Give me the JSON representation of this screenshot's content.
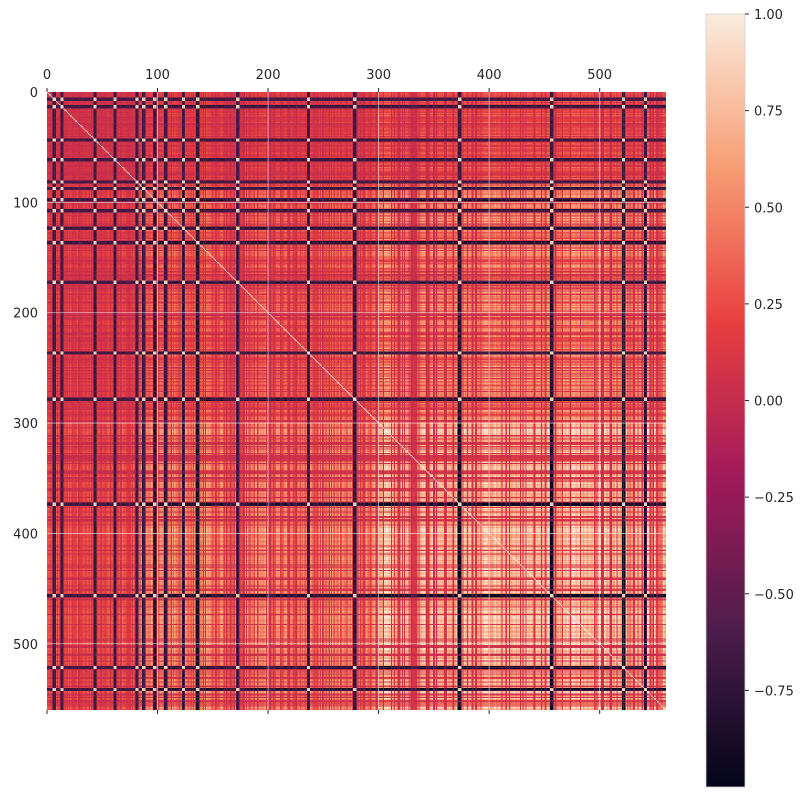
{
  "chart_data": {
    "type": "heatmap",
    "title": "",
    "xlabel": "",
    "ylabel": "",
    "matrix_size": 560,
    "xlim": [
      0,
      560
    ],
    "ylim": [
      560,
      0
    ],
    "x_ticks": [
      0,
      100,
      200,
      300,
      400,
      500
    ],
    "y_ticks": [
      0,
      100,
      200,
      300,
      400,
      500
    ],
    "x_tick_labels": [
      "0",
      "100",
      "200",
      "300",
      "400",
      "500"
    ],
    "y_tick_labels": [
      "0",
      "100",
      "200",
      "300",
      "400",
      "500"
    ],
    "x_axis_position": "top",
    "grid": true,
    "diagonal_value": 1.0,
    "colorbar": {
      "position": "right",
      "range": [
        -1.0,
        1.0
      ],
      "ticks": [
        1.0,
        0.75,
        0.5,
        0.25,
        0.0,
        -0.25,
        -0.5,
        -0.75
      ],
      "tick_labels": [
        "1.00",
        "0.75",
        "0.50",
        "0.25",
        "0.00",
        "−0.25",
        "−0.50",
        "−0.75"
      ]
    },
    "colormap": "rocket",
    "colormap_stops": [
      "#03051a",
      "#4c1d4b",
      "#a11a5b",
      "#e83f3f",
      "#f69c73",
      "#faebdd"
    ],
    "description_values": {
      "dominant_block_lower_right_range": [
        0.5,
        0.9
      ],
      "dark_band_rows": [
        5,
        12,
        42,
        60,
        80,
        86,
        96,
        106,
        122,
        135,
        171,
        235,
        277,
        372,
        455,
        520,
        540
      ],
      "dark_band_cols": [
        12,
        30,
        55,
        86,
        100,
        118,
        135,
        172,
        235,
        292,
        372,
        455,
        520,
        540
      ]
    }
  }
}
